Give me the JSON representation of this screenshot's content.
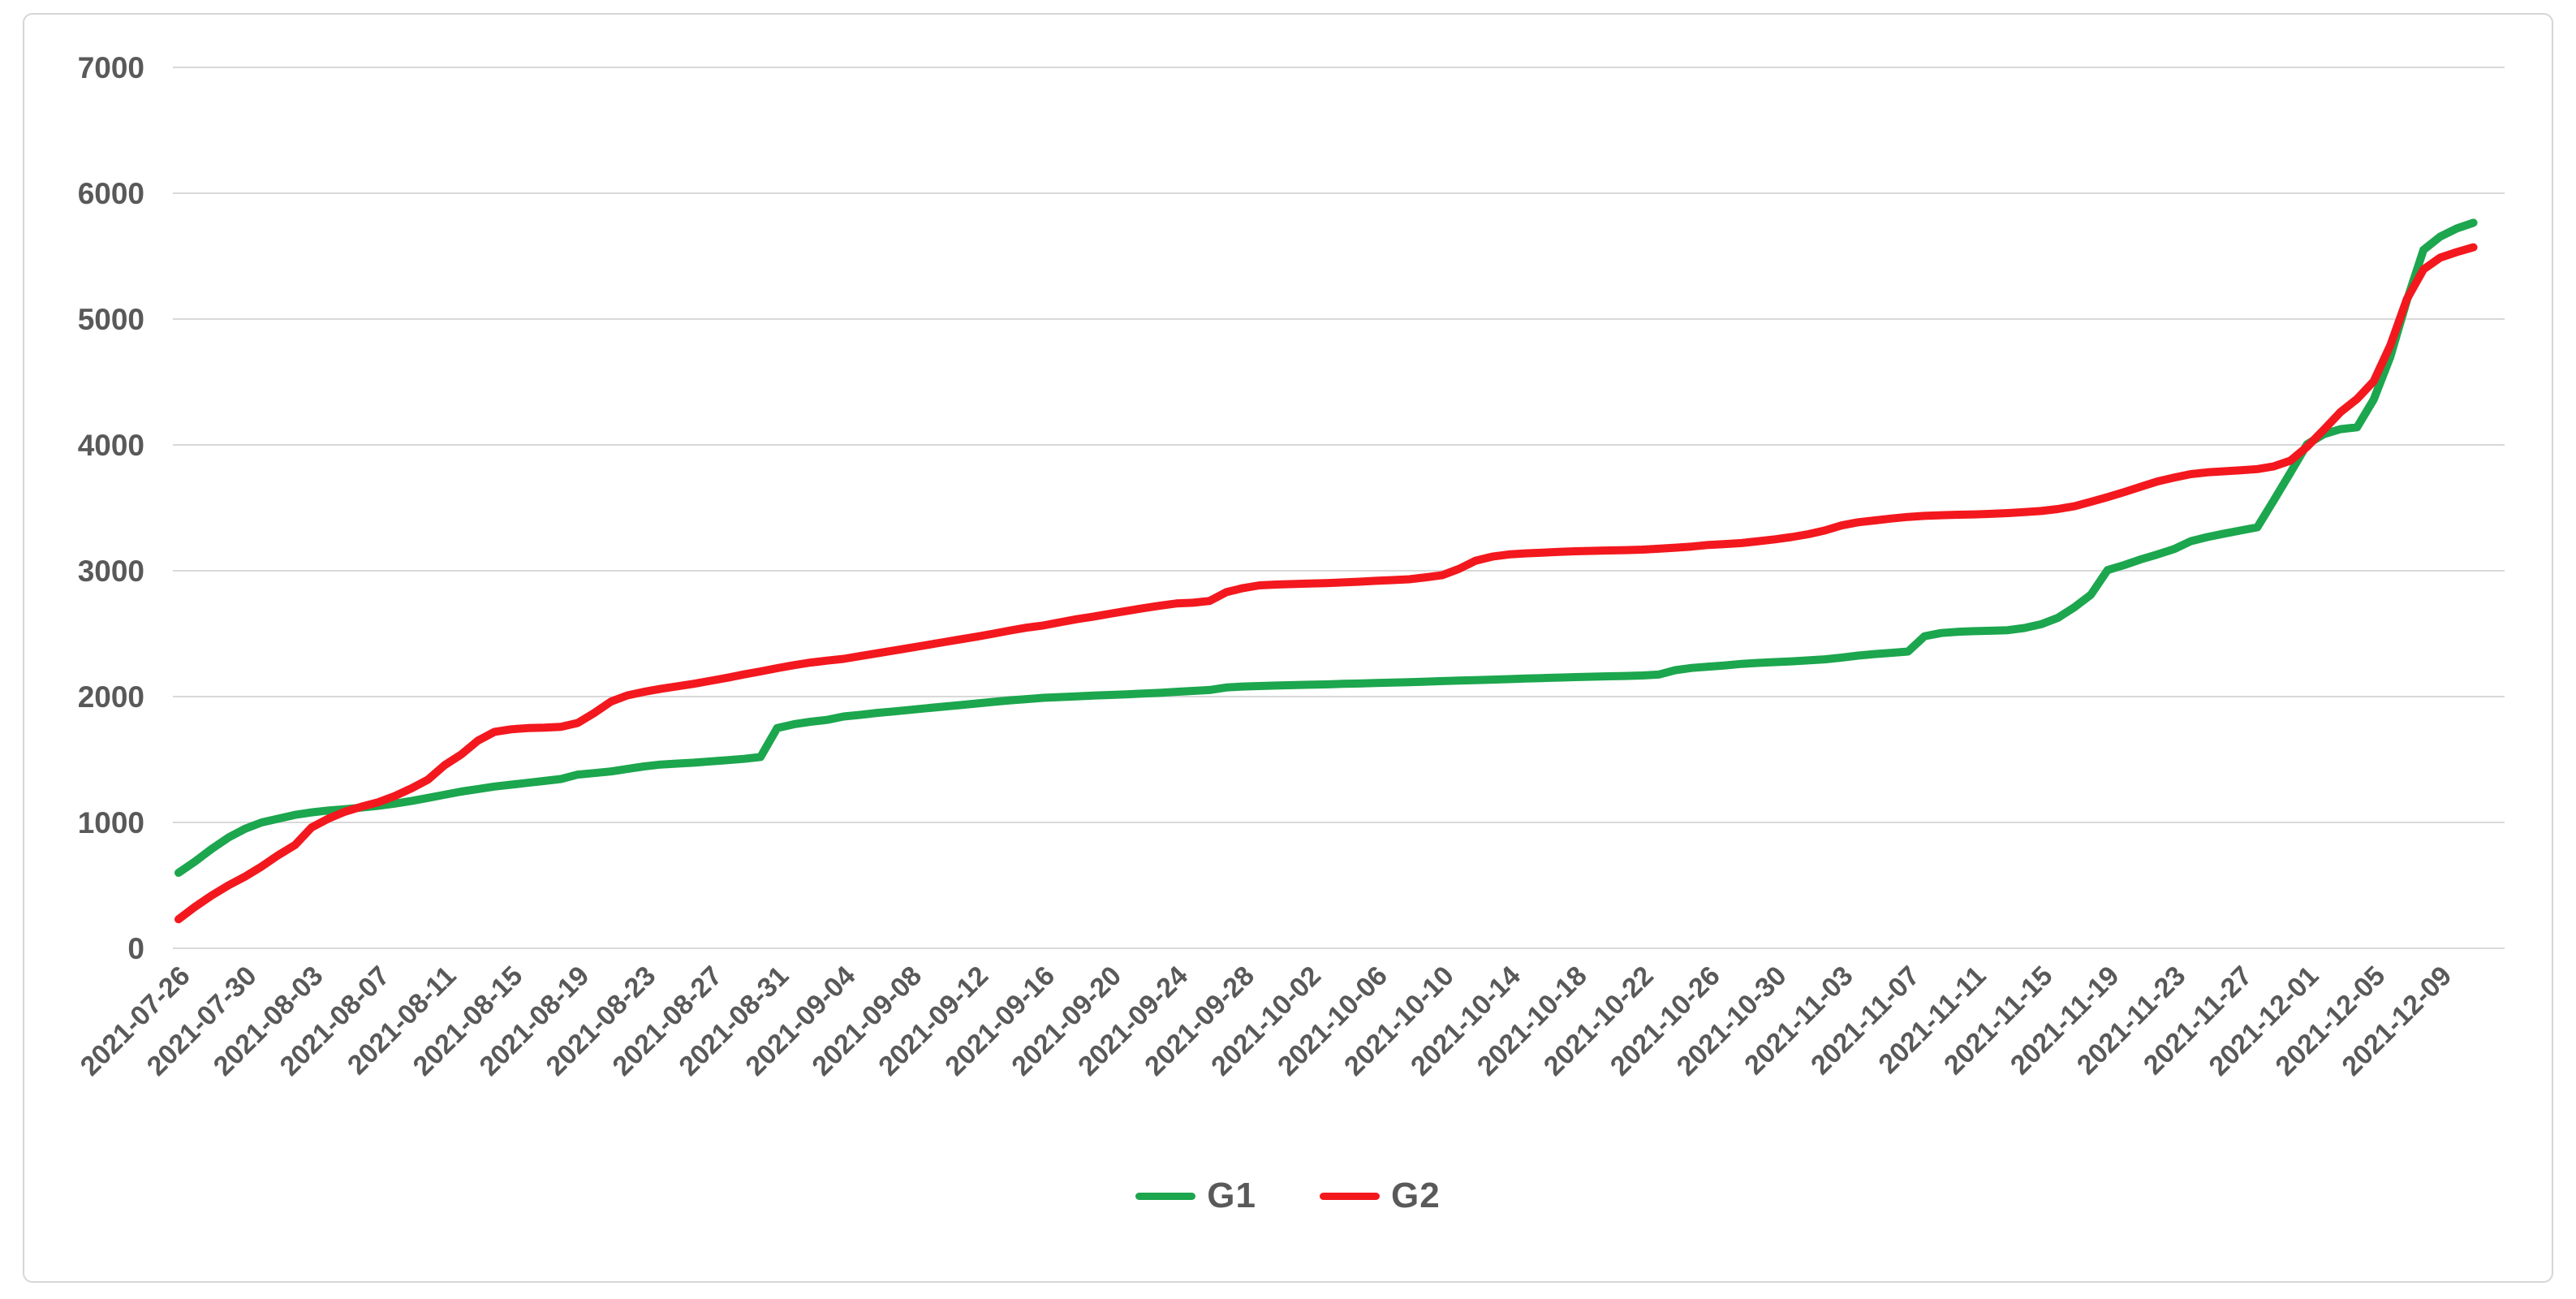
{
  "chart_data": {
    "type": "line",
    "title": "",
    "xlabel": "",
    "ylabel": "",
    "ylim": [
      0,
      7000
    ],
    "yticks": [
      0,
      1000,
      2000,
      3000,
      4000,
      5000,
      6000,
      7000
    ],
    "grid": "horizontal-only",
    "gridline_color": "#d9d9d9",
    "tick_label_color": "#595959",
    "legend_position": "bottom-center",
    "x_label_every": 4,
    "x_label_rotation_deg": -45,
    "x": [
      "2021-07-26",
      "2021-07-27",
      "2021-07-28",
      "2021-07-29",
      "2021-07-30",
      "2021-07-31",
      "2021-08-01",
      "2021-08-02",
      "2021-08-03",
      "2021-08-04",
      "2021-08-05",
      "2021-08-06",
      "2021-08-07",
      "2021-08-08",
      "2021-08-09",
      "2021-08-10",
      "2021-08-11",
      "2021-08-12",
      "2021-08-13",
      "2021-08-14",
      "2021-08-15",
      "2021-08-16",
      "2021-08-17",
      "2021-08-18",
      "2021-08-19",
      "2021-08-20",
      "2021-08-21",
      "2021-08-22",
      "2021-08-23",
      "2021-08-24",
      "2021-08-25",
      "2021-08-26",
      "2021-08-27",
      "2021-08-28",
      "2021-08-29",
      "2021-08-30",
      "2021-08-31",
      "2021-09-01",
      "2021-09-02",
      "2021-09-03",
      "2021-09-04",
      "2021-09-05",
      "2021-09-06",
      "2021-09-07",
      "2021-09-08",
      "2021-09-09",
      "2021-09-10",
      "2021-09-11",
      "2021-09-12",
      "2021-09-13",
      "2021-09-14",
      "2021-09-15",
      "2021-09-16",
      "2021-09-17",
      "2021-09-18",
      "2021-09-19",
      "2021-09-20",
      "2021-09-21",
      "2021-09-22",
      "2021-09-23",
      "2021-09-24",
      "2021-09-25",
      "2021-09-26",
      "2021-09-27",
      "2021-09-28",
      "2021-09-29",
      "2021-09-30",
      "2021-10-01",
      "2021-10-02",
      "2021-10-03",
      "2021-10-04",
      "2021-10-05",
      "2021-10-06",
      "2021-10-07",
      "2021-10-08",
      "2021-10-09",
      "2021-10-10",
      "2021-10-11",
      "2021-10-12",
      "2021-10-13",
      "2021-10-14",
      "2021-10-15",
      "2021-10-16",
      "2021-10-17",
      "2021-10-18",
      "2021-10-19",
      "2021-10-20",
      "2021-10-21",
      "2021-10-22",
      "2021-10-23",
      "2021-10-24",
      "2021-10-25",
      "2021-10-26",
      "2021-10-27",
      "2021-10-28",
      "2021-10-29",
      "2021-10-30",
      "2021-10-31",
      "2021-11-01",
      "2021-11-02",
      "2021-11-03",
      "2021-11-04",
      "2021-11-05",
      "2021-11-06",
      "2021-11-07",
      "2021-11-08",
      "2021-11-09",
      "2021-11-10",
      "2021-11-11",
      "2021-11-12",
      "2021-11-13",
      "2021-11-14",
      "2021-11-15",
      "2021-11-16",
      "2021-11-17",
      "2021-11-18",
      "2021-11-19",
      "2021-11-20",
      "2021-11-21",
      "2021-11-22",
      "2021-11-23",
      "2021-11-24",
      "2021-11-25",
      "2021-11-26",
      "2021-11-27",
      "2021-11-28",
      "2021-11-29",
      "2021-11-30",
      "2021-12-01",
      "2021-12-02",
      "2021-12-03",
      "2021-12-04",
      "2021-12-05",
      "2021-12-06",
      "2021-12-07",
      "2021-12-08",
      "2021-12-09",
      "2021-12-10",
      "2021-12-11"
    ],
    "series": [
      {
        "name": "G1",
        "color": "#1ca64e",
        "values": [
          600,
          690,
          790,
          880,
          950,
          1000,
          1030,
          1060,
          1080,
          1095,
          1105,
          1118,
          1132,
          1150,
          1170,
          1195,
          1220,
          1245,
          1265,
          1285,
          1300,
          1315,
          1330,
          1345,
          1380,
          1392,
          1405,
          1425,
          1445,
          1460,
          1468,
          1475,
          1485,
          1495,
          1505,
          1520,
          1750,
          1780,
          1800,
          1815,
          1842,
          1855,
          1870,
          1882,
          1895,
          1908,
          1920,
          1932,
          1945,
          1958,
          1970,
          1980,
          1990,
          1996,
          2002,
          2008,
          2013,
          2018,
          2024,
          2030,
          2038,
          2045,
          2052,
          2072,
          2080,
          2084,
          2088,
          2091,
          2094,
          2097,
          2101,
          2104,
          2108,
          2111,
          2115,
          2119,
          2123,
          2127,
          2131,
          2135,
          2139,
          2143,
          2147,
          2151,
          2155,
          2158,
          2161,
          2164,
          2168,
          2175,
          2210,
          2228,
          2238,
          2248,
          2260,
          2268,
          2274,
          2280,
          2288,
          2296,
          2310,
          2326,
          2338,
          2348,
          2358,
          2480,
          2505,
          2515,
          2520,
          2523,
          2528,
          2545,
          2575,
          2625,
          2710,
          2810,
          3005,
          3045,
          3090,
          3130,
          3172,
          3235,
          3268,
          3295,
          3320,
          3345,
          3560,
          3780,
          4005,
          4085,
          4125,
          4140,
          4360,
          4700,
          5150,
          5550,
          5655,
          5720,
          5765
        ]
      },
      {
        "name": "G2",
        "color": "#f3181e",
        "values": [
          230,
          330,
          420,
          500,
          570,
          650,
          740,
          820,
          960,
          1030,
          1085,
          1125,
          1160,
          1210,
          1270,
          1340,
          1455,
          1540,
          1650,
          1720,
          1740,
          1750,
          1753,
          1760,
          1790,
          1870,
          1960,
          2010,
          2038,
          2062,
          2082,
          2102,
          2126,
          2150,
          2176,
          2200,
          2226,
          2250,
          2270,
          2286,
          2300,
          2322,
          2344,
          2366,
          2388,
          2410,
          2432,
          2454,
          2476,
          2500,
          2525,
          2548,
          2565,
          2590,
          2615,
          2635,
          2658,
          2680,
          2702,
          2722,
          2740,
          2746,
          2760,
          2830,
          2862,
          2884,
          2890,
          2894,
          2898,
          2902,
          2907,
          2913,
          2920,
          2926,
          2932,
          2948,
          2965,
          3015,
          3080,
          3112,
          3130,
          3138,
          3144,
          3150,
          3155,
          3158,
          3161,
          3164,
          3168,
          3175,
          3183,
          3192,
          3205,
          3212,
          3220,
          3235,
          3250,
          3268,
          3290,
          3320,
          3360,
          3385,
          3400,
          3415,
          3428,
          3436,
          3441,
          3445,
          3448,
          3452,
          3458,
          3466,
          3475,
          3490,
          3512,
          3548,
          3585,
          3625,
          3668,
          3710,
          3740,
          3768,
          3782,
          3790,
          3798,
          3808,
          3830,
          3875,
          3985,
          4120,
          4260,
          4365,
          4505,
          4790,
          5160,
          5395,
          5488,
          5532,
          5570
        ]
      }
    ]
  },
  "legend": {
    "items": [
      {
        "label": "G1",
        "color": "#1ca64e"
      },
      {
        "label": "G2",
        "color": "#f3181e"
      }
    ]
  }
}
